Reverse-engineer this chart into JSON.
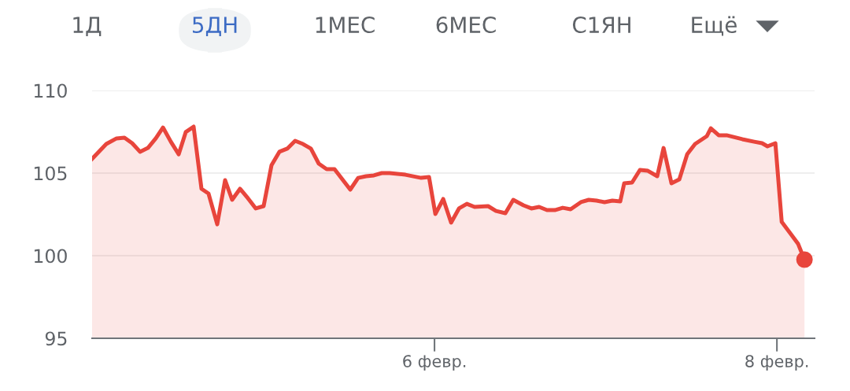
{
  "chart_data": {
    "type": "area",
    "annotations": [
      "1Д",
      "5ДН",
      "1МЕС",
      "6МЕС",
      "С1ЯН",
      "Ещё"
    ],
    "series": [
      {
        "color": "#e8453c",
        "x": [
          4.0,
          4.083,
          4.143,
          4.189,
          4.234,
          4.28,
          4.326,
          4.372,
          4.414,
          4.46,
          4.506,
          4.547,
          4.593,
          4.639,
          4.68,
          4.731,
          4.777,
          4.818,
          4.864,
          4.91,
          4.956,
          5.002,
          5.048,
          5.094,
          5.14,
          5.186,
          5.232,
          5.278,
          5.324,
          5.37,
          5.416,
          5.508,
          5.554,
          5.6,
          5.646,
          5.692,
          5.738,
          5.83,
          5.922,
          5.968,
          6.005,
          6.051,
          6.097,
          6.143,
          6.189,
          6.234,
          6.313,
          6.359,
          6.414,
          6.46,
          6.52,
          6.566,
          6.611,
          6.657,
          6.703,
          6.749,
          6.795,
          6.855,
          6.901,
          6.947,
          6.993,
          7.039,
          7.085,
          7.108,
          7.154,
          7.2,
          7.246,
          7.301,
          7.338,
          7.384,
          7.43,
          7.476,
          7.522,
          7.591,
          7.614,
          7.66,
          7.706,
          7.798,
          7.867,
          7.913,
          7.945,
          7.991,
          8.028,
          8.083,
          8.124,
          8.161
        ],
        "values": [
          105.86,
          106.76,
          107.1,
          107.14,
          106.81,
          106.29,
          106.52,
          107.1,
          107.76,
          106.9,
          106.14,
          107.48,
          107.81,
          104.05,
          103.76,
          101.9,
          104.57,
          103.38,
          104.05,
          103.48,
          102.86,
          103.0,
          105.48,
          106.29,
          106.48,
          106.95,
          106.76,
          106.48,
          105.57,
          105.24,
          105.24,
          104.0,
          104.71,
          104.81,
          104.86,
          105.0,
          105.0,
          104.9,
          104.71,
          104.76,
          102.52,
          103.43,
          102.0,
          102.86,
          103.14,
          102.95,
          103.0,
          102.71,
          102.57,
          103.38,
          103.05,
          102.86,
          102.95,
          102.76,
          102.76,
          102.9,
          102.81,
          103.24,
          103.38,
          103.33,
          103.24,
          103.33,
          103.29,
          104.38,
          104.43,
          105.19,
          105.14,
          104.81,
          106.52,
          104.38,
          104.62,
          106.14,
          106.76,
          107.24,
          107.71,
          107.29,
          107.29,
          107.05,
          106.9,
          106.81,
          106.62,
          106.81,
          102.05,
          101.29,
          100.71,
          99.76
        ]
      },
      {
        "type": "scatter",
        "color": "#e8453c",
        "x": [
          8.161
        ],
        "values": [
          99.76
        ]
      }
    ],
    "xlim": [
      4.0,
      8.22
    ],
    "xticks": [
      {
        "value": 6,
        "label": "6 февр."
      },
      {
        "value": 8,
        "label": "8 февр."
      }
    ],
    "ylim": [
      95,
      110
    ],
    "yticks": [
      95,
      100,
      105,
      110
    ],
    "grid": "y",
    "line_style": "solid"
  }
}
